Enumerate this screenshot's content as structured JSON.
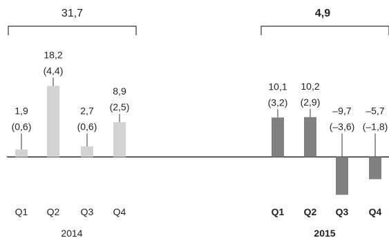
{
  "chart_data": [
    {
      "type": "bar",
      "group_label": "2014",
      "group_total_label": "31,7",
      "categories": [
        "Q1",
        "Q2",
        "Q3",
        "Q4"
      ],
      "values": [
        1.9,
        18.2,
        2.7,
        8.9
      ],
      "value_labels": [
        "1,9",
        "18,2",
        "2,7",
        "8,9"
      ],
      "secondary_labels": [
        "(0,6)",
        "(4,4)",
        "(0,6)",
        "(2,5)"
      ],
      "bar_color": "#d3d3d3",
      "emphasis": "normal"
    },
    {
      "type": "bar",
      "group_label": "2015",
      "group_total_label": "4,9",
      "categories": [
        "Q1",
        "Q2",
        "Q3",
        "Q4"
      ],
      "values": [
        10.1,
        10.2,
        -9.7,
        -5.7
      ],
      "value_labels": [
        "10,1",
        "10,2",
        "–9,7",
        "–5,7"
      ],
      "secondary_labels": [
        "(3,2)",
        "(2,9)",
        "(–3,6)",
        "(–1,8)"
      ],
      "bar_color": "#808080",
      "emphasis": "bold"
    }
  ],
  "colors": {
    "axis": "#222222",
    "connector": "#333333",
    "text": "#222222"
  }
}
